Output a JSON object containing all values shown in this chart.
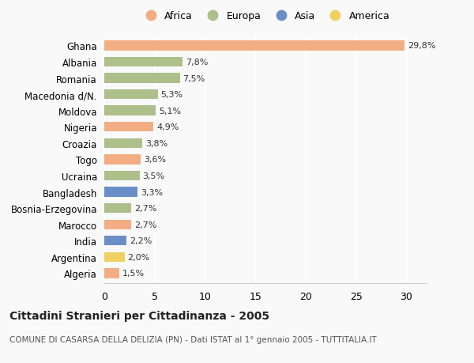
{
  "countries": [
    "Ghana",
    "Albania",
    "Romania",
    "Macedonia d/N.",
    "Moldova",
    "Nigeria",
    "Croazia",
    "Togo",
    "Ucraina",
    "Bangladesh",
    "Bosnia-Erzegovina",
    "Marocco",
    "India",
    "Argentina",
    "Algeria"
  ],
  "values": [
    29.8,
    7.8,
    7.5,
    5.3,
    5.1,
    4.9,
    3.8,
    3.6,
    3.5,
    3.3,
    2.7,
    2.7,
    2.2,
    2.0,
    1.5
  ],
  "labels": [
    "29,8%",
    "7,8%",
    "7,5%",
    "5,3%",
    "5,1%",
    "4,9%",
    "3,8%",
    "3,6%",
    "3,5%",
    "3,3%",
    "2,7%",
    "2,7%",
    "2,2%",
    "2,0%",
    "1,5%"
  ],
  "continents": [
    "Africa",
    "Europa",
    "Europa",
    "Europa",
    "Europa",
    "Africa",
    "Europa",
    "Africa",
    "Europa",
    "Asia",
    "Europa",
    "Africa",
    "Asia",
    "America",
    "Africa"
  ],
  "colors": {
    "Africa": "#F2AE82",
    "Europa": "#ADBF8A",
    "Asia": "#6B8EC8",
    "America": "#F0D060"
  },
  "legend_order": [
    "Africa",
    "Europa",
    "Asia",
    "America"
  ],
  "title": "Cittadini Stranieri per Cittadinanza - 2005",
  "subtitle": "COMUNE DI CASARSA DELLA DELIZIA (PN) - Dati ISTAT al 1° gennaio 2005 - TUTTITALIA.IT",
  "xlim": [
    0,
    32
  ],
  "xticks": [
    0,
    5,
    10,
    15,
    20,
    25,
    30
  ],
  "background_color": "#f9f9f9",
  "bar_height": 0.6,
  "title_fontsize": 10,
  "subtitle_fontsize": 7.5,
  "label_fontsize": 8,
  "ytick_fontsize": 8.5,
  "xtick_fontsize": 9,
  "legend_fontsize": 9
}
